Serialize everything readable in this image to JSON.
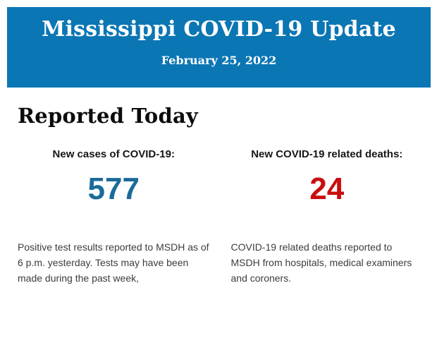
{
  "header": {
    "title": "Mississippi COVID-19 Update",
    "date": "February 25, 2022",
    "background_color": "#0b76b4",
    "text_color": "#ffffff"
  },
  "section": {
    "heading": "Reported Today"
  },
  "stats": [
    {
      "label": "New cases of COVID-19:",
      "value": "577",
      "value_color": "#1b6b99",
      "description": "Positive test results reported to MSDH as of 6 p.m. yesterday. Tests may have been made during the past week,"
    },
    {
      "label": "New COVID-19 related deaths:",
      "value": "24",
      "value_color": "#c90e0e",
      "description": "COVID-19 related deaths reported to MSDH from hospitals, medical examiners and coroners."
    }
  ]
}
